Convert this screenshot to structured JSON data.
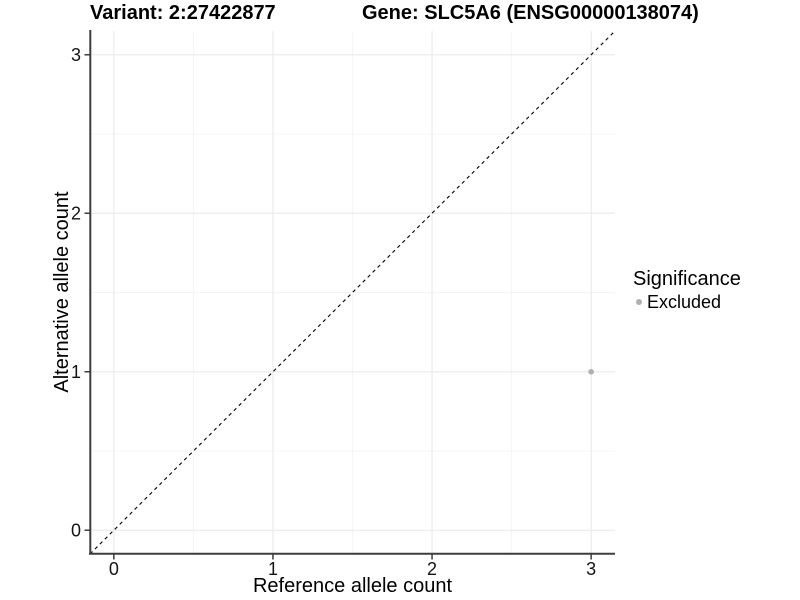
{
  "title": {
    "variant": "Variant: 2:27422877",
    "gene": "Gene: SLC5A6 (ENSG00000138074)"
  },
  "axes": {
    "x_label": "Reference allele count",
    "y_label": "Alternative allele count"
  },
  "legend": {
    "title": "Significance",
    "items": [
      {
        "label": "Excluded",
        "color": "#b0b0b0"
      }
    ]
  },
  "chart_data": {
    "type": "scatter",
    "title": "Variant: 2:27422877   Gene: SLC5A6 (ENSG00000138074)",
    "xlabel": "Reference allele count",
    "ylabel": "Alternative allele count",
    "xlim": [
      -0.15,
      3.15
    ],
    "ylim": [
      -0.15,
      3.15
    ],
    "x_ticks": [
      0,
      1,
      2,
      3
    ],
    "y_ticks": [
      0,
      1,
      2,
      3
    ],
    "grid": "major+minor",
    "minor_step": 0.5,
    "legend_position": "right",
    "series": [
      {
        "name": "Excluded",
        "color": "#b0b0b0",
        "points": [
          {
            "x": 3,
            "y": 1
          }
        ]
      }
    ],
    "reference_line": {
      "type": "identity",
      "style": "dashed",
      "color": "#000000"
    },
    "colors": {
      "background": "#ffffff",
      "grid_major": "#ebebeb",
      "grid_minor": "#f4f4f4",
      "axis_line": "#3d3d3d",
      "tick_label": "#141414"
    }
  }
}
